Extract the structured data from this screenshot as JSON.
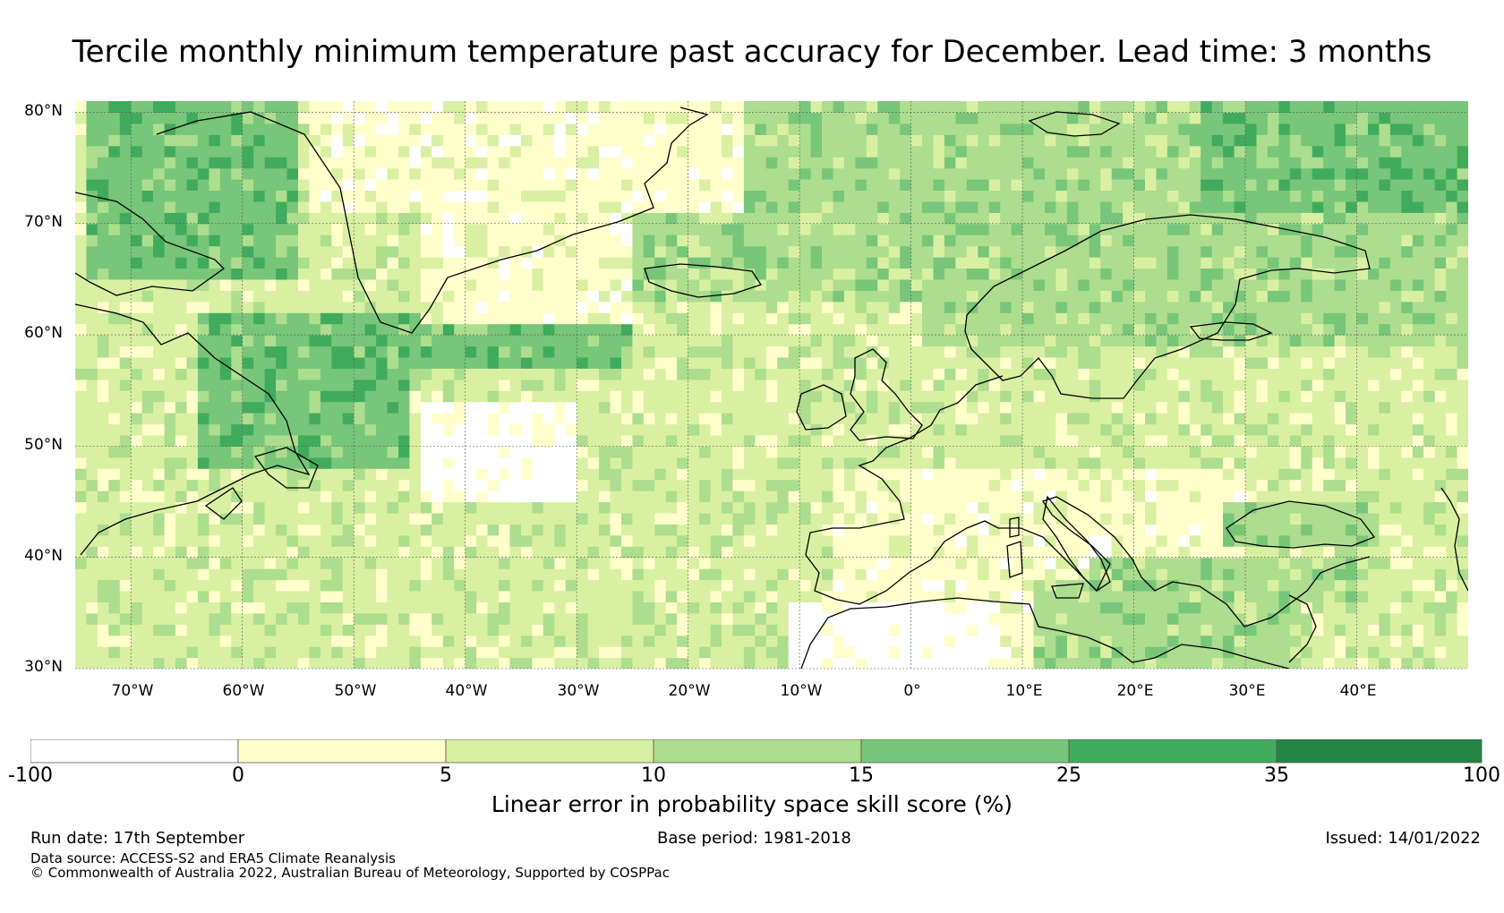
{
  "title": "Tercile monthly minimum temperature past accuracy for December. Lead time: 3 months",
  "map": {
    "lat_labels": [
      "80°N",
      "70°N",
      "60°N",
      "50°N",
      "40°N",
      "30°N"
    ],
    "lon_labels": [
      "70°W",
      "60°W",
      "50°W",
      "40°W",
      "30°W",
      "20°W",
      "10°W",
      "0°",
      "10°E",
      "20°E",
      "30°E",
      "40°E"
    ],
    "lat_range": [
      30,
      81
    ],
    "lon_range": [
      -75,
      50
    ]
  },
  "colorbar": {
    "boundaries": [
      "-100",
      "0",
      "5",
      "10",
      "15",
      "25",
      "35",
      "100"
    ],
    "colors": [
      "#ffffff",
      "#ffffcc",
      "#d9f0a3",
      "#addd8e",
      "#78c679",
      "#41ab5d",
      "#238443"
    ],
    "label": "Linear error in probability space skill score (%)"
  },
  "footer": {
    "run_date": "Run date: 17th September",
    "base_period": "Base period: 1981-2018",
    "issued": "Issued: 14/01/2022",
    "data_source": "Data source: ACCESS-S2 and ERA5 Climate Reanalysis",
    "copyright": "© Commonwealth of Australia 2022, Australian Bureau of Meteorology, Supported by COSPPac"
  }
}
